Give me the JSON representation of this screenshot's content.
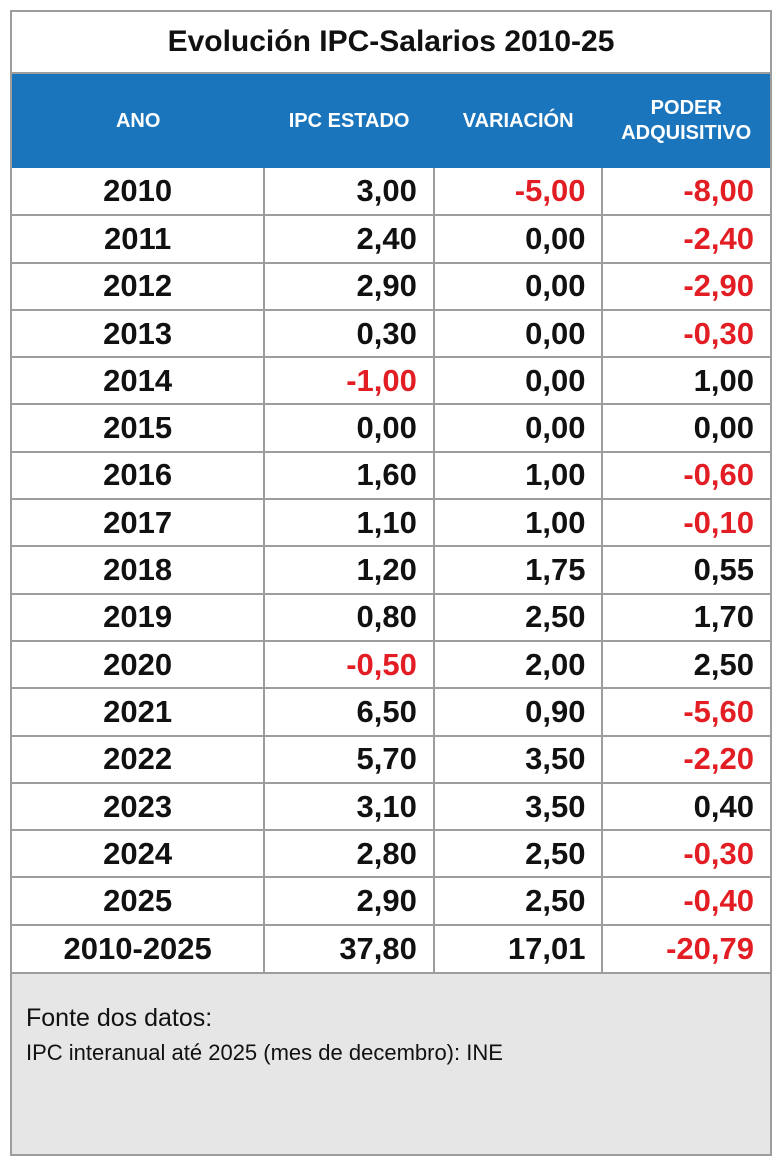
{
  "chart_data": {
    "type": "table",
    "title": "Evolución IPC-Salarios 2010-25",
    "columns": [
      "ANO",
      "IPC ESTADO",
      "VARIACIÓN",
      "PODER ADQUISITIVO"
    ],
    "decimal_separator": ",",
    "rows": [
      [
        "2010",
        "3,00",
        "-5,00",
        "-8,00"
      ],
      [
        "2011",
        "2,40",
        "0,00",
        "-2,40"
      ],
      [
        "2012",
        "2,90",
        "0,00",
        "-2,90"
      ],
      [
        "2013",
        "0,30",
        "0,00",
        "-0,30"
      ],
      [
        "2014",
        "-1,00",
        "0,00",
        "1,00"
      ],
      [
        "2015",
        "0,00",
        "0,00",
        "0,00"
      ],
      [
        "2016",
        "1,60",
        "1,00",
        "-0,60"
      ],
      [
        "2017",
        "1,10",
        "1,00",
        "-0,10"
      ],
      [
        "2018",
        "1,20",
        "1,75",
        "0,55"
      ],
      [
        "2019",
        "0,80",
        "2,50",
        "1,70"
      ],
      [
        "2020",
        "-0,50",
        "2,00",
        "2,50"
      ],
      [
        "2021",
        "6,50",
        "0,90",
        "-5,60"
      ],
      [
        "2022",
        "5,70",
        "3,50",
        "-2,20"
      ],
      [
        "2023",
        "3,10",
        "3,50",
        "0,40"
      ],
      [
        "2024",
        "2,80",
        "2,50",
        "-0,30"
      ],
      [
        "2025",
        "2,90",
        "2,50",
        "-0,40"
      ],
      [
        "2010-2025",
        "37,80",
        "17,01",
        "-20,79"
      ]
    ],
    "x": [
      2010,
      2011,
      2012,
      2013,
      2014,
      2015,
      2016,
      2017,
      2018,
      2019,
      2020,
      2021,
      2022,
      2023,
      2024,
      2025
    ],
    "series": [
      {
        "name": "IPC ESTADO",
        "values": [
          3.0,
          2.4,
          2.9,
          0.3,
          -1.0,
          0.0,
          1.6,
          1.1,
          1.2,
          0.8,
          -0.5,
          6.5,
          5.7,
          3.1,
          2.8,
          2.9
        ]
      },
      {
        "name": "VARIACIÓN",
        "values": [
          -5.0,
          0.0,
          0.0,
          0.0,
          0.0,
          0.0,
          1.0,
          1.0,
          1.75,
          2.5,
          2.0,
          0.9,
          3.5,
          3.5,
          2.5,
          2.5
        ]
      },
      {
        "name": "PODER ADQUISITIVO",
        "values": [
          -8.0,
          -2.4,
          -2.9,
          -0.3,
          1.0,
          0.0,
          -0.6,
          -0.1,
          0.55,
          1.7,
          2.5,
          -5.6,
          -2.2,
          0.4,
          -0.3,
          -0.4
        ]
      }
    ],
    "totals": {
      "label": "2010-2025",
      "ipc_estado": 37.8,
      "variacion": 17.01,
      "poder_adquisitivo": -20.79
    }
  },
  "footer": {
    "line1": "Fonte dos datos:",
    "line2": "IPC interanual até 2025 (mes de decembro): INE"
  },
  "colors": {
    "header_background": "#1b75bc",
    "header_text": "#ffffff",
    "negative_value": "#e21d23",
    "value_text": "#111111",
    "grid_border": "#9d9d9d",
    "footer_background": "#e6e6e6"
  }
}
